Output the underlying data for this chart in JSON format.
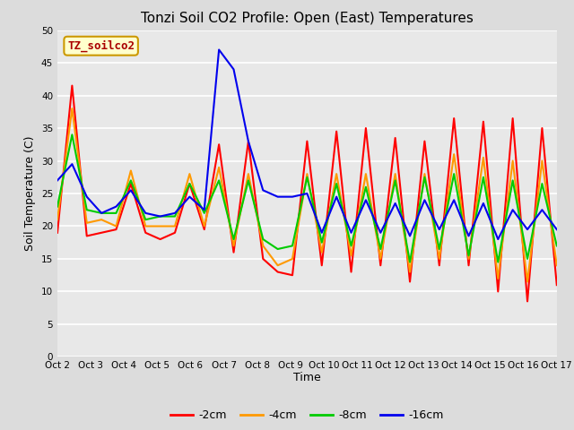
{
  "title": "Tonzi Soil CO2 Profile: Open (East) Temperatures",
  "xlabel": "Time",
  "ylabel": "Soil Temperature (C)",
  "ylim": [
    0,
    50
  ],
  "yticks": [
    0,
    5,
    10,
    15,
    20,
    25,
    30,
    35,
    40,
    45,
    50
  ],
  "xtick_labels": [
    "Oct 2",
    "Oct 3",
    "Oct 4",
    "Oct 5",
    "Oct 6",
    "Oct 7",
    "Oct 8",
    "Oct 9",
    "Oct 10",
    "Oct 11",
    "Oct 12",
    "Oct 13",
    "Oct 14",
    "Oct 15",
    "Oct 16",
    "Oct 17"
  ],
  "bg_color": "#dcdcdc",
  "plot_bg_color": "#e8e8e8",
  "grid_color": "#ffffff",
  "colors": {
    "2cm": "#ff0000",
    "4cm": "#ff9900",
    "8cm": "#00cc00",
    "16cm": "#0000ee"
  },
  "legend_labels": [
    "-2cm",
    "-4cm",
    "-8cm",
    "-16cm"
  ],
  "legend_colors": [
    "#ff0000",
    "#ff9900",
    "#00cc00",
    "#0000ee"
  ],
  "watermark_text": "TZ_soilco2",
  "watermark_bg": "#ffffcc",
  "watermark_border": "#cc9900",
  "watermark_text_color": "#aa0000",
  "n_days": 15,
  "data_2cm": [
    19.0,
    41.5,
    18.5,
    19.0,
    19.5,
    26.5,
    19.0,
    18.0,
    19.0,
    26.5,
    19.5,
    32.5,
    16.0,
    33.0,
    15.0,
    13.0,
    12.5,
    33.0,
    14.0,
    34.5,
    13.0,
    35.0,
    14.0,
    33.5,
    11.5,
    33.0,
    14.0,
    36.5,
    14.0,
    36.0,
    10.0,
    36.5,
    8.5,
    35.0,
    11.0
  ],
  "data_4cm": [
    21.0,
    38.0,
    20.5,
    21.0,
    20.0,
    28.5,
    20.0,
    20.0,
    20.0,
    28.0,
    20.0,
    29.0,
    17.0,
    28.0,
    17.0,
    14.0,
    15.0,
    28.0,
    16.0,
    28.0,
    15.5,
    28.0,
    15.0,
    28.0,
    13.0,
    28.0,
    15.0,
    31.0,
    15.0,
    30.5,
    12.0,
    30.0,
    11.5,
    30.0,
    14.0
  ],
  "data_8cm": [
    23.0,
    34.0,
    22.5,
    22.0,
    22.0,
    27.0,
    21.0,
    21.5,
    21.5,
    26.5,
    22.0,
    27.0,
    18.0,
    27.0,
    18.0,
    16.5,
    17.0,
    27.5,
    17.5,
    26.5,
    17.0,
    26.0,
    16.5,
    27.0,
    14.5,
    27.5,
    16.5,
    28.0,
    15.5,
    27.5,
    14.5,
    27.0,
    15.0,
    26.5,
    17.0
  ],
  "data_16cm": [
    27.0,
    29.5,
    24.5,
    22.0,
    23.0,
    25.5,
    22.0,
    21.5,
    22.0,
    24.5,
    22.5,
    47.0,
    44.0,
    33.0,
    25.5,
    24.5,
    24.5,
    25.0,
    19.0,
    24.5,
    19.0,
    24.0,
    19.0,
    23.5,
    18.5,
    24.0,
    19.5,
    24.0,
    18.5,
    23.5,
    18.0,
    22.5,
    19.5,
    22.5,
    19.5
  ]
}
